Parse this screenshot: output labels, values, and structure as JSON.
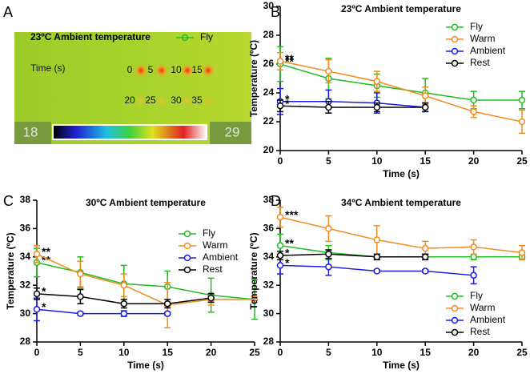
{
  "chart_data": [
    {
      "type": "image",
      "panel": "A",
      "title": "23ºC Ambient temperature",
      "series": [
        {
          "name": "Fly",
          "color": "#22bb22"
        }
      ],
      "axis_label": "Time (s)",
      "time_labels": [
        0,
        5,
        10,
        15,
        20,
        25,
        30,
        35
      ],
      "colorbar": [
        18,
        29
      ]
    },
    {
      "type": "line",
      "panel": "B",
      "title": "23ºC Ambient temperature",
      "x_label": "Time (s)",
      "y_label": "Temperature (ºC)",
      "x": [
        0,
        5,
        10,
        15,
        20,
        25
      ],
      "xlim": [
        0,
        25
      ],
      "xticks": [
        0,
        5,
        10,
        15,
        20,
        25
      ],
      "ylim": [
        20,
        30
      ],
      "yticks": [
        20,
        22,
        24,
        26,
        28,
        30
      ],
      "legend": "upper right",
      "series": [
        {
          "name": "Fly",
          "color": "#22bb22",
          "values": [
            26.0,
            25.0,
            24.5,
            24.0,
            23.5,
            23.5
          ],
          "errors": [
            1.2,
            1.4,
            0.8,
            1.0,
            0.6,
            0.6
          ],
          "annotation": "**"
        },
        {
          "name": "Warm",
          "color": "#f08c1e",
          "values": [
            26.2,
            25.5,
            24.8,
            23.8,
            22.7,
            22.0
          ],
          "errors": [
            0.6,
            0.8,
            0.7,
            0.6,
            0.4,
            0.8
          ],
          "annotation": "**"
        },
        {
          "name": "Ambient",
          "color": "#1a1ae6",
          "values": [
            23.4,
            23.4,
            23.3,
            23.0,
            null,
            null
          ],
          "errors": [
            0.9,
            0.8,
            0.7,
            0.3,
            null,
            null
          ],
          "annotation": "*"
        },
        {
          "name": "Rest",
          "color": "#000000",
          "values": [
            23.1,
            23.0,
            23.0,
            23.0,
            null,
            null
          ],
          "errors": [
            0.4,
            0.4,
            0.3,
            0.3,
            null,
            null
          ],
          "annotation": "*"
        }
      ]
    },
    {
      "type": "line",
      "panel": "C",
      "title": "30ºC Ambient temperature",
      "x_label": "Time (s)",
      "y_label": "Temperature (ºC)",
      "x": [
        0,
        5,
        10,
        15,
        20,
        25
      ],
      "xlim": [
        0,
        25
      ],
      "xticks": [
        0,
        5,
        10,
        15,
        20,
        25
      ],
      "ylim": [
        28,
        38
      ],
      "yticks": [
        28,
        30,
        32,
        34,
        36,
        38
      ],
      "legend": "center right",
      "series": [
        {
          "name": "Fly",
          "color": "#22bb22",
          "values": [
            33.6,
            32.9,
            32.1,
            31.9,
            31.3,
            31.0
          ],
          "errors": [
            1.0,
            1.1,
            1.3,
            1.1,
            1.2,
            1.4
          ],
          "annotation": "**"
        },
        {
          "name": "Warm",
          "color": "#f08c1e",
          "values": [
            34.2,
            32.8,
            32.0,
            30.6,
            31.0,
            31.0
          ],
          "errors": [
            0.6,
            0.9,
            0.8,
            1.6,
            0.4,
            0.2
          ],
          "annotation": "**"
        },
        {
          "name": "Ambient",
          "color": "#1a1ae6",
          "values": [
            30.3,
            30.0,
            30.0,
            30.0,
            null,
            null
          ],
          "errors": [
            0.8,
            0.1,
            0.2,
            0.1,
            null,
            null
          ],
          "annotation": "*"
        },
        {
          "name": "Rest",
          "color": "#000000",
          "values": [
            31.4,
            31.2,
            30.7,
            30.7,
            31.1,
            null
          ],
          "errors": [
            0.4,
            0.5,
            0.3,
            0.3,
            0.3,
            null
          ],
          "annotation": "*"
        }
      ]
    },
    {
      "type": "line",
      "panel": "D",
      "title": "34ºC Ambient temperature",
      "x_label": "Time (s)",
      "y_label": "Temperature (ºC)",
      "x": [
        0,
        5,
        10,
        15,
        20,
        25
      ],
      "xlim": [
        0,
        25
      ],
      "xticks": [
        0,
        5,
        10,
        15,
        20,
        25
      ],
      "ylim": [
        28,
        38
      ],
      "yticks": [
        28,
        30,
        32,
        34,
        36,
        38
      ],
      "legend": "lower right",
      "series": [
        {
          "name": "Fly",
          "color": "#22bb22",
          "values": [
            34.8,
            34.3,
            34.0,
            34.0,
            34.0,
            34.0
          ],
          "errors": [
            0.8,
            0.5,
            0.2,
            0.2,
            0.2,
            0.2
          ],
          "annotation": "**"
        },
        {
          "name": "Warm",
          "color": "#f08c1e",
          "values": [
            36.8,
            36.0,
            35.2,
            34.6,
            34.7,
            34.3
          ],
          "errors": [
            0.7,
            0.9,
            1.0,
            0.5,
            0.5,
            0.5
          ],
          "annotation": "***"
        },
        {
          "name": "Ambient",
          "color": "#1a1ae6",
          "values": [
            33.4,
            33.3,
            33.0,
            33.0,
            32.7,
            null
          ],
          "errors": [
            0.6,
            0.6,
            0.1,
            0.1,
            0.6,
            null
          ],
          "annotation": "*"
        },
        {
          "name": "Rest",
          "color": "#000000",
          "values": [
            34.1,
            34.2,
            34.0,
            34.0,
            null,
            null
          ],
          "errors": [
            0.3,
            0.3,
            0.2,
            0.2,
            null,
            null
          ],
          "annotation": "*"
        }
      ]
    }
  ]
}
